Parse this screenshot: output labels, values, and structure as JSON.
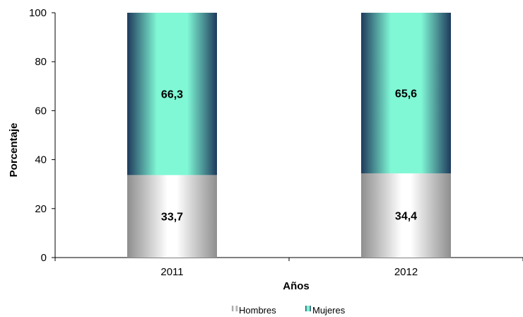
{
  "chart_data": {
    "type": "bar",
    "stacked": true,
    "categories": [
      "2011",
      "2012"
    ],
    "series": [
      {
        "name": "Hombres",
        "values": [
          33.7,
          34.4
        ],
        "labels": [
          "33,7",
          "34,4"
        ],
        "color": "#9a9a9a"
      },
      {
        "name": "Mujeres",
        "values": [
          66.3,
          65.6
        ],
        "labels": [
          "66,3",
          "65,6"
        ],
        "color": "#7ff5d3"
      }
    ],
    "xlabel": "Años",
    "ylabel": "Porcentaje",
    "ylim": [
      0,
      100
    ],
    "yticks": [
      0,
      20,
      40,
      60,
      80,
      100
    ],
    "legend_position": "bottom",
    "grid": false
  }
}
